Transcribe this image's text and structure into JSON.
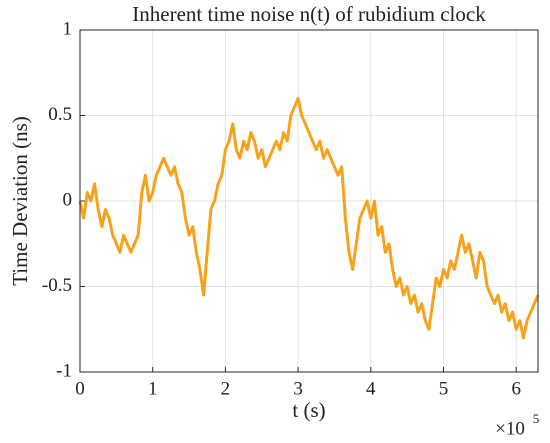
{
  "chart_data": {
    "type": "line",
    "title": "Inherent time noise n(t) of rubidium clock",
    "x_label": "t (s)",
    "y_label": "Time Deviation (ns)",
    "x_scale_base": "×10",
    "x_scale_power": "5",
    "x": [
      0,
      5000,
      10000,
      15000,
      20000,
      25000,
      30000,
      35000,
      40000,
      45000,
      50000,
      55000,
      60000,
      65000,
      70000,
      75000,
      80000,
      85000,
      90000,
      95000,
      100000,
      105000,
      110000,
      115000,
      120000,
      125000,
      130000,
      135000,
      140000,
      145000,
      150000,
      155000,
      160000,
      165000,
      170000,
      175000,
      180000,
      185000,
      190000,
      195000,
      200000,
      205000,
      210000,
      215000,
      220000,
      225000,
      230000,
      235000,
      240000,
      245000,
      250000,
      255000,
      260000,
      265000,
      270000,
      275000,
      280000,
      285000,
      290000,
      295000,
      300000,
      305000,
      310000,
      315000,
      320000,
      325000,
      330000,
      335000,
      340000,
      345000,
      350000,
      355000,
      360000,
      365000,
      370000,
      375000,
      380000,
      385000,
      390000,
      395000,
      400000,
      405000,
      410000,
      415000,
      420000,
      425000,
      430000,
      435000,
      440000,
      445000,
      450000,
      455000,
      460000,
      465000,
      470000,
      475000,
      480000,
      485000,
      490000,
      495000,
      500000,
      505000,
      510000,
      515000,
      520000,
      525000,
      530000,
      535000,
      540000,
      545000,
      550000,
      555000,
      560000,
      565000,
      570000,
      575000,
      580000,
      585000,
      590000,
      595000,
      600000,
      605000,
      610000,
      615000,
      620000,
      625000,
      630000
    ],
    "series": [
      {
        "color": "#f7a21b",
        "values": [
          0,
          -0.1,
          0.05,
          0,
          0.1,
          -0.05,
          -0.15,
          -0.05,
          -0.1,
          -0.2,
          -0.25,
          -0.3,
          -0.2,
          -0.25,
          -0.3,
          -0.25,
          -0.2,
          0.05,
          0.15,
          0,
          0.05,
          0.15,
          0.2,
          0.25,
          0.2,
          0.15,
          0.2,
          0.1,
          0.05,
          -0.1,
          -0.2,
          -0.15,
          -0.3,
          -0.4,
          -0.55,
          -0.3,
          -0.05,
          0,
          0.1,
          0.15,
          0.3,
          0.35,
          0.45,
          0.3,
          0.25,
          0.35,
          0.3,
          0.4,
          0.35,
          0.25,
          0.3,
          0.2,
          0.25,
          0.3,
          0.35,
          0.3,
          0.4,
          0.35,
          0.5,
          0.55,
          0.6,
          0.5,
          0.45,
          0.4,
          0.35,
          0.3,
          0.35,
          0.25,
          0.3,
          0.25,
          0.2,
          0.15,
          0.2,
          -0.1,
          -0.3,
          -0.4,
          -0.25,
          -0.1,
          -0.05,
          0,
          -0.1,
          0,
          -0.2,
          -0.15,
          -0.3,
          -0.25,
          -0.4,
          -0.5,
          -0.45,
          -0.55,
          -0.5,
          -0.6,
          -0.55,
          -0.65,
          -0.6,
          -0.7,
          -0.75,
          -0.6,
          -0.45,
          -0.5,
          -0.4,
          -0.45,
          -0.35,
          -0.4,
          -0.3,
          -0.2,
          -0.3,
          -0.25,
          -0.35,
          -0.45,
          -0.3,
          -0.35,
          -0.5,
          -0.55,
          -0.6,
          -0.55,
          -0.65,
          -0.6,
          -0.7,
          -0.65,
          -0.75,
          -0.7,
          -0.8,
          -0.7,
          -0.65,
          -0.6,
          -0.55
        ]
      }
    ],
    "xlim": [
      0,
      630000
    ],
    "xticks": [
      0,
      {
        "value": 100000,
        "label": "1"
      },
      {
        "value": 200000,
        "label": "2"
      },
      {
        "value": 300000,
        "label": "3"
      },
      {
        "value": 400000,
        "label": "4"
      },
      {
        "value": 500000,
        "label": "5"
      },
      {
        "value": 600000,
        "label": "6"
      }
    ],
    "ylim": [
      -1,
      1
    ],
    "yticks": [
      -1,
      -0.5,
      0,
      0.5,
      1
    ],
    "grid": true
  }
}
